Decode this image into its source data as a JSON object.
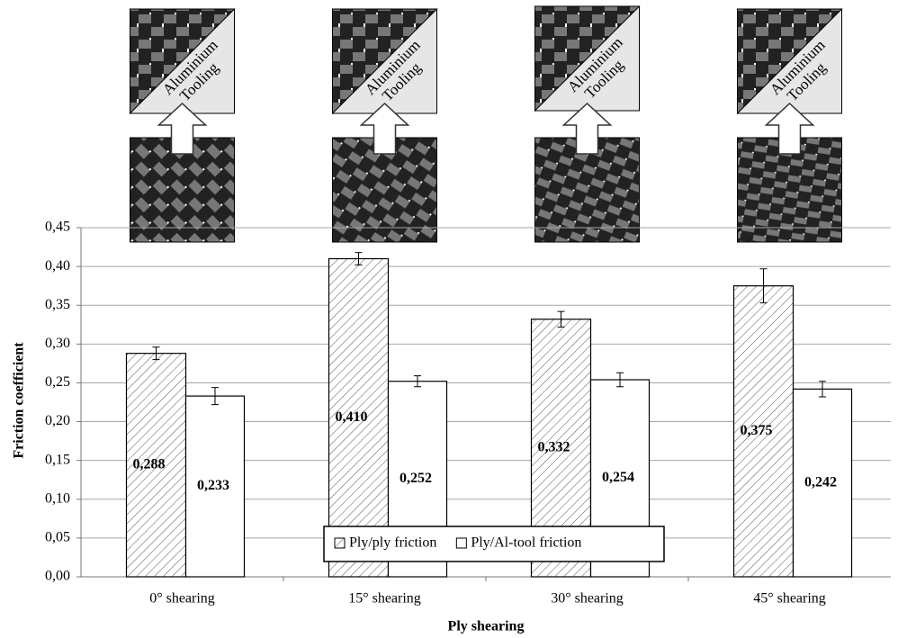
{
  "chart_data": {
    "type": "bar",
    "x_label": "Ply shearing",
    "y_label": "Friction coefficient",
    "categories": [
      "0° shearing",
      "15° shearing",
      "30° shearing",
      "45° shearing"
    ],
    "series": [
      {
        "name": "Ply/ply friction",
        "color": "#ffffff",
        "hatch": true,
        "values": [
          0.288,
          0.41,
          0.332,
          0.375
        ],
        "value_labels": [
          "0,288",
          "0,410",
          "0,332",
          "0,375"
        ],
        "errors": [
          0.008,
          0.008,
          0.01,
          0.022
        ]
      },
      {
        "name": "Ply/Al-tool friction",
        "color": "#ffffff",
        "hatch": false,
        "values": [
          0.233,
          0.252,
          0.254,
          0.242
        ],
        "value_labels": [
          "0,233",
          "0,252",
          "0,254",
          "0,242"
        ],
        "errors": [
          0.011,
          0.007,
          0.009,
          0.01
        ]
      }
    ],
    "ylim": [
      0,
      0.45
    ],
    "yticks": [
      {
        "value": 0,
        "label": "0,00"
      },
      {
        "value": 0.05,
        "label": "0,05"
      },
      {
        "value": 0.1,
        "label": "0,10"
      },
      {
        "value": 0.15,
        "label": "0,15"
      },
      {
        "value": 0.2,
        "label": "0,20"
      },
      {
        "value": 0.25,
        "label": "0,25"
      },
      {
        "value": 0.3,
        "label": "0,30"
      },
      {
        "value": 0.35,
        "label": "0,35"
      },
      {
        "value": 0.4,
        "label": "0,40"
      },
      {
        "value": 0.45,
        "label": "0,45"
      }
    ],
    "grid": true,
    "legend": "bottom",
    "insets": [
      {
        "label": [
          "Aluminium",
          "Tooling"
        ]
      },
      {
        "label": [
          "Aluminium",
          "Tooling"
        ]
      },
      {
        "label": [
          "Aluminium",
          "Tooling"
        ]
      },
      {
        "label": [
          "Aluminium",
          "Tooling"
        ]
      }
    ]
  }
}
